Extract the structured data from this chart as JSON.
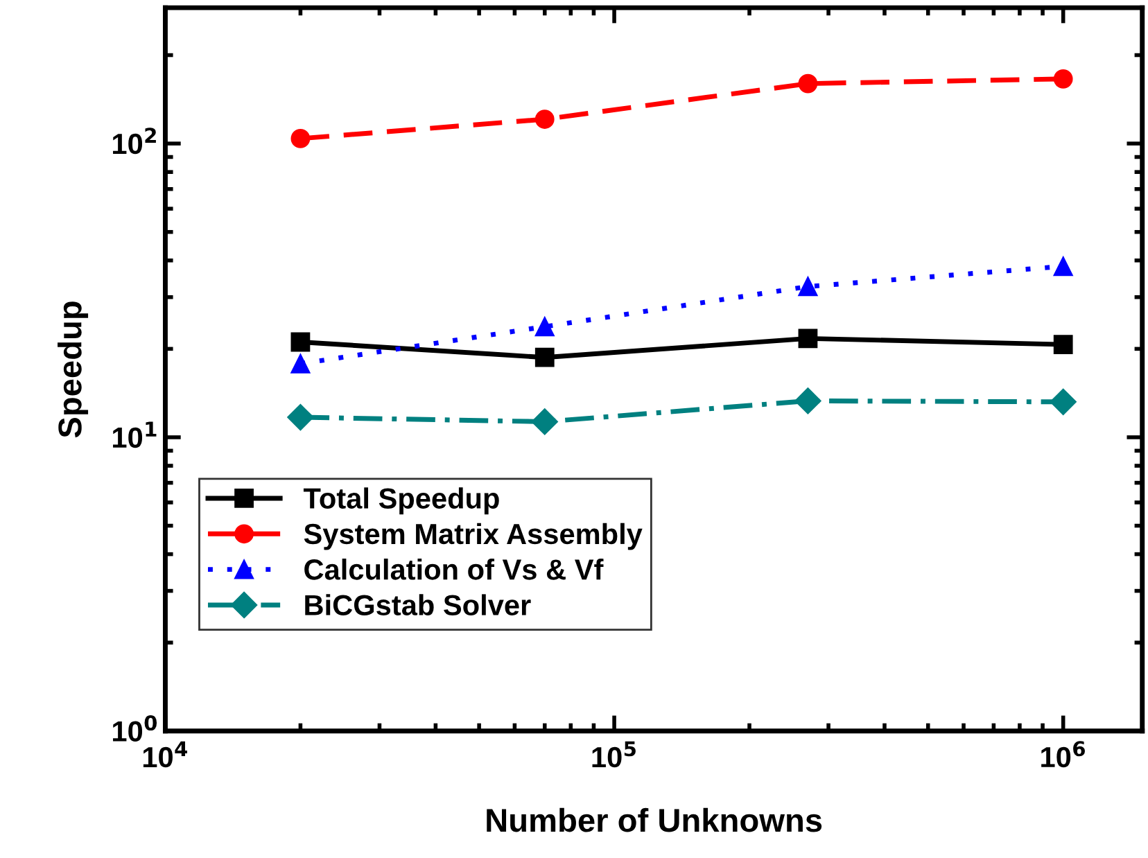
{
  "chart_data": {
    "type": "line",
    "xlabel": "Number of Unknowns",
    "ylabel": "Speedup",
    "log": "xy",
    "grid": false,
    "legend": "bottom left",
    "x": [
      20000,
      70000,
      270000,
      1000000
    ],
    "xlim": [
      10000,
      1500000
    ],
    "ylim": [
      1,
      290
    ],
    "xticks": [
      {
        "value": 10000,
        "label": "10$^{4}$"
      },
      {
        "value": 100000,
        "label": "10$^{5}$"
      },
      {
        "value": 1000000,
        "label": "10$^{6}$"
      }
    ],
    "yticks": [
      {
        "value": 1,
        "label": "10$^{0}$"
      },
      {
        "value": 10,
        "label": "10$^{1}$"
      },
      {
        "value": 100,
        "label": "10$^{2}$"
      }
    ],
    "series": [
      {
        "name": "Total Speedup",
        "color": "#000000",
        "marker": "square",
        "line_style": "solid",
        "values": [
          21.1,
          18.7,
          21.7,
          20.7
        ]
      },
      {
        "name": "System Matrix Assembly",
        "color": "#ff0000",
        "marker": "circle",
        "line_style": "dashed",
        "values": [
          104,
          121,
          160,
          166
        ]
      },
      {
        "name": "Calculation of Vs & Vf",
        "color": "#0000ff",
        "marker": "triangle",
        "line_style": "dotted",
        "values": [
          17.8,
          23.8,
          32.6,
          38.2
        ]
      },
      {
        "name": "BiCGstab Solver",
        "color": "#008080",
        "marker": "diamond",
        "line_style": "dashdot",
        "values": [
          11.7,
          11.3,
          13.3,
          13.2
        ]
      }
    ]
  }
}
